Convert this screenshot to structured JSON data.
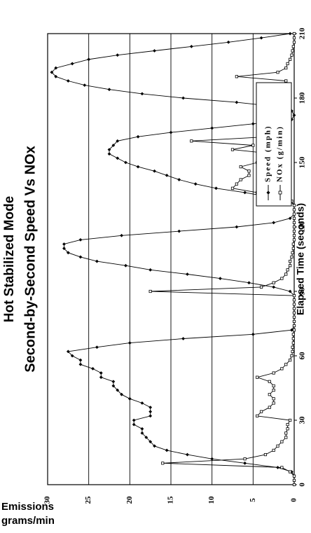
{
  "chart_data": {
    "type": "line",
    "title": "Hot Stabilized Mode",
    "subtitle": "Second-by-Second Speed Vs NOx",
    "xlabel": "Elapsed Time (seconds)",
    "ylabel": "Emissions grams/min",
    "ylabel_lines": [
      "Emissions",
      "grams/min"
    ],
    "xlim": [
      0,
      210
    ],
    "ylim": [
      0,
      30
    ],
    "x_ticks": [
      "0",
      "30",
      "60",
      "90",
      "120",
      "150",
      "180",
      "210"
    ],
    "y_ticks": [
      "0",
      "5",
      "10",
      "15",
      "20",
      "25",
      "30"
    ],
    "grid": "horizontal",
    "legend_position": "top-right",
    "series": [
      {
        "name": "Speed (mph)",
        "marker": "diamond",
        "x": [
          0,
          2,
          4,
          6,
          8,
          10,
          12,
          14,
          16,
          18,
          20,
          22,
          24,
          26,
          28,
          30,
          32,
          34,
          36,
          38,
          40,
          42,
          44,
          46,
          48,
          50,
          52,
          54,
          56,
          58,
          60,
          62,
          64,
          66,
          68,
          70,
          72,
          74,
          76,
          78,
          80,
          82,
          84,
          86,
          88,
          90,
          92,
          94,
          96,
          98,
          100,
          102,
          104,
          106,
          108,
          110,
          112,
          114,
          116,
          118,
          120,
          122,
          124,
          126,
          128,
          130,
          132,
          134,
          136,
          138,
          140,
          142,
          144,
          146,
          148,
          150,
          152,
          154,
          156,
          158,
          160,
          162,
          164,
          166,
          168,
          170,
          172,
          174,
          176,
          178,
          180,
          182,
          184,
          186,
          188,
          190,
          192,
          194,
          196,
          198,
          200,
          202,
          204,
          206,
          208,
          210
        ],
        "values": [
          0,
          0,
          0,
          0.3,
          2,
          6,
          10,
          13,
          15.5,
          17,
          17.5,
          18,
          18.5,
          18.5,
          19.5,
          19.5,
          17.5,
          17.5,
          17.5,
          18.5,
          20,
          21,
          21.5,
          22,
          22,
          23.5,
          23.5,
          24.5,
          26,
          26,
          27,
          27.5,
          24,
          20,
          13.5,
          5,
          0.3,
          0,
          0,
          0,
          0,
          0,
          0,
          0,
          0,
          0.5,
          2.5,
          5.5,
          9,
          13,
          17.5,
          20.5,
          24,
          26,
          27.5,
          28,
          28,
          26,
          21,
          14,
          7,
          2.5,
          0.5,
          0,
          0,
          0,
          0.5,
          3,
          6,
          9.5,
          12,
          14,
          15.5,
          17,
          19,
          20.5,
          21.5,
          22.5,
          22.5,
          22,
          21.5,
          19,
          15,
          10,
          5,
          0.3,
          0,
          0.3,
          2,
          7,
          13.5,
          18.5,
          22.5,
          25.5,
          27.5,
          29,
          29.5,
          29,
          27,
          25,
          21.5,
          17,
          12.5,
          8,
          4,
          0.5
        ]
      },
      {
        "name": "NOx (g/min)",
        "marker": "square",
        "x": [
          0,
          2,
          4,
          6,
          8,
          10,
          12,
          14,
          16,
          18,
          20,
          22,
          24,
          26,
          28,
          30,
          32,
          34,
          36,
          38,
          40,
          42,
          44,
          46,
          48,
          50,
          52,
          54,
          56,
          58,
          60,
          62,
          64,
          66,
          68,
          70,
          72,
          74,
          76,
          78,
          80,
          82,
          84,
          86,
          88,
          90,
          92,
          94,
          96,
          98,
          100,
          102,
          104,
          106,
          108,
          110,
          112,
          114,
          116,
          118,
          120,
          122,
          124,
          126,
          128,
          130,
          132,
          134,
          136,
          138,
          140,
          142,
          144,
          146,
          148,
          150,
          152,
          154,
          156,
          158,
          160,
          162,
          164,
          166,
          168,
          170,
          172,
          174,
          176,
          178,
          180,
          182,
          184,
          186,
          188,
          190,
          192,
          194,
          196,
          198,
          200,
          202,
          204,
          206,
          208,
          210
        ],
        "values": [
          0,
          0,
          0,
          0.5,
          1.5,
          16,
          6,
          3.5,
          2.5,
          2,
          1.5,
          1,
          1,
          0.8,
          0.8,
          0.5,
          4.5,
          4,
          3,
          2.5,
          2.5,
          3,
          2.5,
          2.5,
          3,
          4.5,
          2.5,
          1.5,
          1,
          0.5,
          0.3,
          0.2,
          0.2,
          0.1,
          0.1,
          0.1,
          0,
          0,
          0,
          0,
          0,
          0,
          0,
          0,
          0,
          17.5,
          4,
          2.5,
          1.5,
          1,
          0.8,
          0.5,
          0.5,
          0.3,
          0.2,
          0.1,
          0.1,
          0,
          0,
          0,
          0,
          0,
          0,
          0,
          0,
          0,
          0.3,
          1,
          4.5,
          7.5,
          7,
          6.5,
          5.5,
          5.5,
          6.5,
          4.5,
          3,
          2.5,
          7.5,
          5,
          12.5,
          3,
          1.5,
          1,
          0.8,
          0.5,
          0.5,
          0.8,
          1,
          1.5,
          1,
          1.5,
          3,
          1.5,
          1,
          7,
          2,
          1,
          0.8,
          0.5,
          0.3,
          0.2,
          0.1,
          0,
          0,
          0
        ]
      }
    ]
  }
}
